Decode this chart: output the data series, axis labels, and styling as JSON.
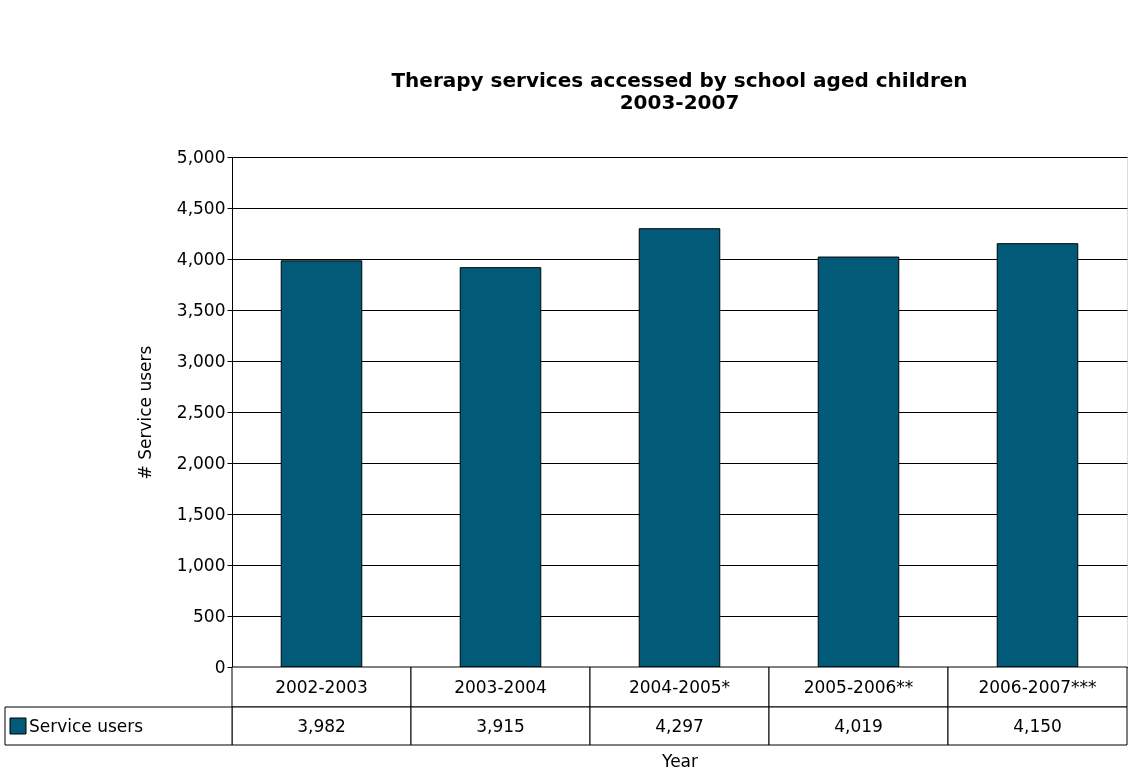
{
  "chart_data": {
    "type": "bar",
    "title": "Therapy services accessed by school aged children 2003-2007",
    "xlabel": "Year",
    "ylabel": "# Service users",
    "categories": [
      "2002-2003",
      "2003-2004",
      "2004-2005*",
      "2005-2006**",
      "2006-2007***"
    ],
    "series": [
      {
        "name": "Service users",
        "color": "#005a78",
        "values": [
          3982,
          3915,
          4297,
          4019,
          4150
        ],
        "value_labels": [
          "3,982",
          "3,915",
          "4,297",
          "4,019",
          "4,150"
        ]
      }
    ],
    "ylim": [
      0,
      5000
    ],
    "yticks": [
      0,
      {
        "value": 500,
        "label": "500"
      },
      {
        "value": 1000,
        "label": "1,000"
      },
      {
        "value": 1500,
        "label": "1,500"
      },
      {
        "value": 2000,
        "label": "2,000"
      },
      {
        "value": 2500,
        "label": "2,500"
      },
      {
        "value": 3000,
        "label": "3,000"
      },
      {
        "value": 3500,
        "label": "3,500"
      },
      {
        "value": 4000,
        "label": "4,000"
      },
      {
        "value": 4500,
        "label": "4,500"
      },
      {
        "value": 5000,
        "label": "5,000"
      }
    ],
    "grid": "y",
    "legend": "bottom"
  }
}
